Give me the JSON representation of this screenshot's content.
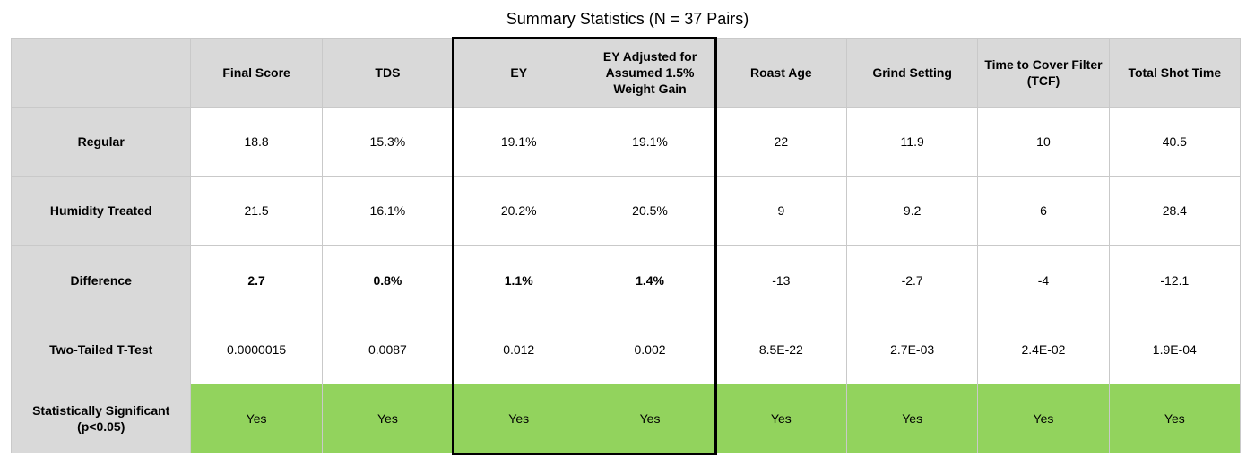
{
  "title": "Summary Statistics (N = 37 Pairs)",
  "chart_data": {
    "type": "table",
    "title": "Summary Statistics (N = 37 Pairs)",
    "columns": [
      "Final Score",
      "TDS",
      "EY",
      "EY Adjusted for Assumed 1.5% Weight Gain",
      "Roast Age",
      "Grind Setting",
      "Time to Cover Filter (TCF)",
      "Total Shot Time"
    ],
    "rows": [
      {
        "label": "Regular",
        "values": [
          "18.8",
          "15.3%",
          "19.1%",
          "19.1%",
          "22",
          "11.9",
          "10",
          "40.5"
        ]
      },
      {
        "label": "Humidity Treated",
        "values": [
          "21.5",
          "16.1%",
          "20.2%",
          "20.5%",
          "9",
          "9.2",
          "6",
          "28.4"
        ]
      },
      {
        "label": "Difference",
        "values": [
          "2.7",
          "0.8%",
          "1.1%",
          "1.4%",
          "-13",
          "-2.7",
          "-4",
          "-12.1"
        ]
      },
      {
        "label": "Two-Tailed T-Test",
        "values": [
          "0.0000015",
          "0.0087",
          "0.012",
          "0.002",
          "8.5E-22",
          "2.7E-03",
          "2.4E-02",
          "1.9E-04"
        ]
      },
      {
        "label": "Statistically Significant (p<0.05)",
        "values": [
          "Yes",
          "Yes",
          "Yes",
          "Yes",
          "Yes",
          "Yes",
          "Yes",
          "Yes"
        ]
      }
    ],
    "highlighted_columns": [
      "EY",
      "EY Adjusted for Assumed 1.5% Weight Gain"
    ],
    "colors": {
      "header_bg": "#d9d9d9",
      "significant_bg": "#92d35d",
      "highlight_border": "#000000"
    }
  }
}
